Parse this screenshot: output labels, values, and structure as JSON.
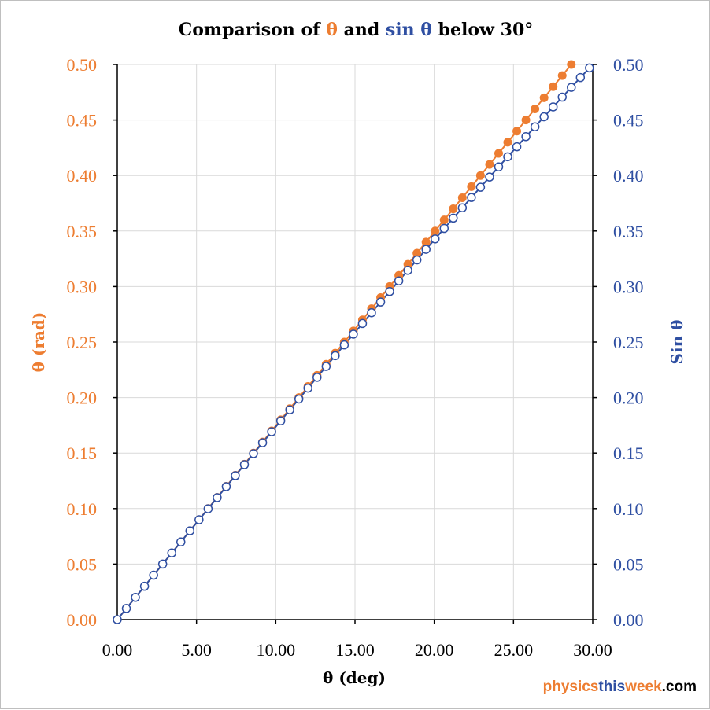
{
  "colors": {
    "theta": "#ED7D31",
    "sin": "#2F4FA2",
    "grid": "#D9D9D9",
    "axis": "#000000",
    "text": "#000000"
  },
  "chart_data": {
    "type": "scatter",
    "title_parts": [
      "Comparison of ",
      "θ",
      " and ",
      "sin θ",
      " below 30°"
    ],
    "xlabel": "θ (deg)",
    "ylabel_left": "θ (rad)",
    "ylabel_right": "Sin θ",
    "xlim": [
      0,
      30
    ],
    "ylim_left": [
      0,
      0.5
    ],
    "ylim_right": [
      0,
      0.5
    ],
    "x_ticks": [
      "0.00",
      "5.00",
      "10.00",
      "15.00",
      "20.00",
      "25.00",
      "30.00"
    ],
    "y_ticks_left": [
      "0.00",
      "0.05",
      "0.10",
      "0.15",
      "0.20",
      "0.25",
      "0.30",
      "0.35",
      "0.40",
      "0.45",
      "0.50"
    ],
    "y_ticks_right": [
      "0.00",
      "0.05",
      "0.10",
      "0.15",
      "0.20",
      "0.25",
      "0.30",
      "0.35",
      "0.40",
      "0.45",
      "0.50"
    ],
    "grid": true,
    "series": [
      {
        "name": "θ",
        "axis": "left",
        "marker": "filled-circle",
        "x": [
          0.0,
          0.573,
          1.146,
          1.719,
          2.292,
          2.865,
          3.438,
          4.011,
          4.584,
          5.157,
          5.73,
          6.303,
          6.875,
          7.448,
          8.021,
          8.594,
          9.167,
          9.74,
          10.313,
          10.886,
          11.459,
          12.032,
          12.605,
          13.178,
          13.751,
          14.324,
          14.897,
          15.47,
          16.043,
          16.616,
          17.189,
          17.762,
          18.335,
          18.908,
          19.481,
          20.054,
          20.626,
          21.199,
          21.772,
          22.345,
          22.918,
          23.491,
          24.064,
          24.637,
          25.21,
          25.783,
          26.356,
          26.929,
          27.502,
          28.075,
          28.648
        ],
        "y": [
          0.0,
          0.01,
          0.02,
          0.03,
          0.04,
          0.05,
          0.06,
          0.07,
          0.08,
          0.09,
          0.1,
          0.11,
          0.12,
          0.13,
          0.14,
          0.15,
          0.16,
          0.17,
          0.18,
          0.19,
          0.2,
          0.21,
          0.22,
          0.23,
          0.24,
          0.25,
          0.26,
          0.27,
          0.28,
          0.29,
          0.3,
          0.31,
          0.32,
          0.33,
          0.34,
          0.35,
          0.36,
          0.37,
          0.38,
          0.39,
          0.4,
          0.41,
          0.42,
          0.43,
          0.44,
          0.45,
          0.46,
          0.47,
          0.48,
          0.49,
          0.5
        ]
      },
      {
        "name": "sin θ",
        "axis": "right",
        "marker": "open-circle",
        "x": [
          0.0,
          0.573,
          1.146,
          1.719,
          2.292,
          2.865,
          3.438,
          4.011,
          4.584,
          5.157,
          5.73,
          6.303,
          6.875,
          7.448,
          8.021,
          8.594,
          9.167,
          9.74,
          10.313,
          10.886,
          11.459,
          12.032,
          12.605,
          13.178,
          13.751,
          14.324,
          14.897,
          15.47,
          16.043,
          16.616,
          17.189,
          17.762,
          18.335,
          18.908,
          19.481,
          20.054,
          20.626,
          21.199,
          21.772,
          22.345,
          22.918,
          23.491,
          24.064,
          24.637,
          25.21,
          25.783,
          26.356,
          26.929,
          27.502,
          28.075,
          28.648,
          29.221,
          29.794
        ],
        "y": [
          0.0,
          0.01,
          0.02,
          0.03,
          0.04,
          0.05,
          0.06,
          0.0699,
          0.0799,
          0.0899,
          0.0998,
          0.1098,
          0.1197,
          0.1296,
          0.1395,
          0.1494,
          0.1593,
          0.1692,
          0.179,
          0.1889,
          0.1987,
          0.2085,
          0.2182,
          0.228,
          0.2377,
          0.2474,
          0.2571,
          0.2667,
          0.2764,
          0.286,
          0.2955,
          0.3051,
          0.3146,
          0.324,
          0.3335,
          0.3429,
          0.3523,
          0.3616,
          0.3709,
          0.3802,
          0.3894,
          0.3986,
          0.4078,
          0.4169,
          0.4259,
          0.435,
          0.4439,
          0.4529,
          0.4618,
          0.4706,
          0.4794,
          0.4882,
          0.4969
        ]
      }
    ]
  },
  "watermark": {
    "part1": "physics",
    "part2": "this",
    "part3": "week",
    "part4": ".com",
    "colors": [
      "#ED7D31",
      "#2F4FA2",
      "#ED7D31",
      "#000000"
    ]
  }
}
